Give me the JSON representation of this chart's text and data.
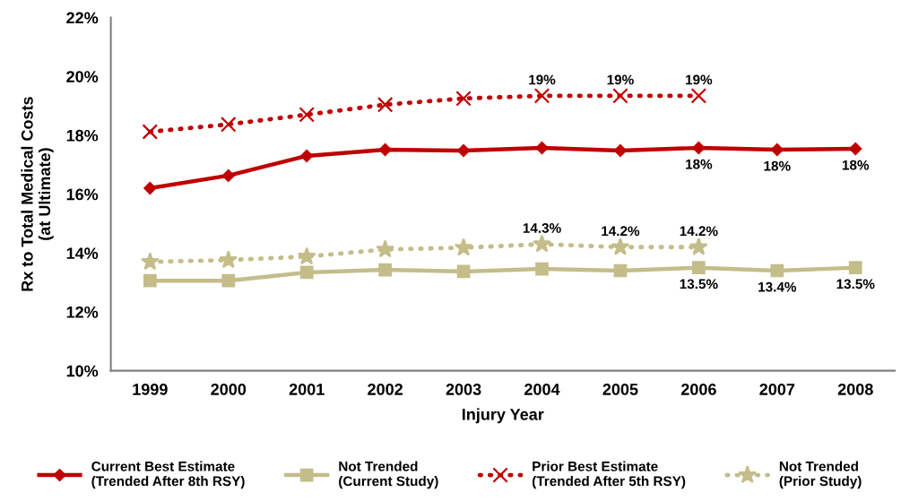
{
  "chart_data": {
    "type": "line",
    "xlabel": "Injury Year",
    "ylabel": "Rx to Total Medical Costs\n(at Ultimate)",
    "categories": [
      "1999",
      "2000",
      "2001",
      "2002",
      "2003",
      "2004",
      "2005",
      "2006",
      "2007",
      "2008"
    ],
    "ylim": [
      10,
      22
    ],
    "yticks": [
      {
        "value": 10,
        "label": "10%"
      },
      {
        "value": 12,
        "label": "12%"
      },
      {
        "value": 14,
        "label": "14%"
      },
      {
        "value": 16,
        "label": "16%"
      },
      {
        "value": 18,
        "label": "18%"
      },
      {
        "value": 20,
        "label": "20%"
      },
      {
        "value": 22,
        "label": "22%"
      }
    ],
    "grid": false,
    "legend": "bottom",
    "series": [
      {
        "name": "Current Best Estimate\n(Trended After 8th RSY)",
        "color": "#c00000",
        "marker": "diamond",
        "line_style": "solid",
        "values": [
          16.2,
          16.63,
          17.3,
          17.51,
          17.48,
          17.57,
          17.48,
          17.57,
          17.51,
          17.54
        ],
        "value_labels": [
          null,
          null,
          null,
          null,
          null,
          null,
          null,
          "18%",
          "18%",
          "18%"
        ]
      },
      {
        "name": "Not Trended\n(Current Study)",
        "color": "#c4bd8a",
        "marker": "square",
        "line_style": "solid",
        "values": [
          13.06,
          13.06,
          13.34,
          13.43,
          13.37,
          13.46,
          13.4,
          13.5,
          13.4,
          13.5
        ],
        "value_labels": [
          null,
          null,
          null,
          null,
          null,
          null,
          null,
          "13.5%",
          "13.4%",
          "13.5%"
        ]
      },
      {
        "name": "Prior Best Estimate\n(Trended After 5th RSY)",
        "color": "#c00000",
        "marker": "cross",
        "line_style": "dotted",
        "values": [
          18.12,
          18.37,
          18.7,
          19.04,
          19.25,
          19.34,
          19.34,
          19.34,
          null,
          null
        ],
        "value_labels": [
          null,
          null,
          null,
          null,
          null,
          "19%",
          "19%",
          "19%",
          null,
          null
        ]
      },
      {
        "name": "Not Trended\n(Prior Study)",
        "color": "#c4bd8a",
        "marker": "star",
        "line_style": "dotted",
        "values": [
          13.7,
          13.76,
          13.88,
          14.12,
          14.18,
          14.3,
          14.2,
          14.2,
          null,
          null
        ],
        "value_labels": [
          null,
          null,
          null,
          null,
          null,
          "14.3%",
          "14.2%",
          "14.2%",
          null,
          null
        ]
      }
    ]
  }
}
